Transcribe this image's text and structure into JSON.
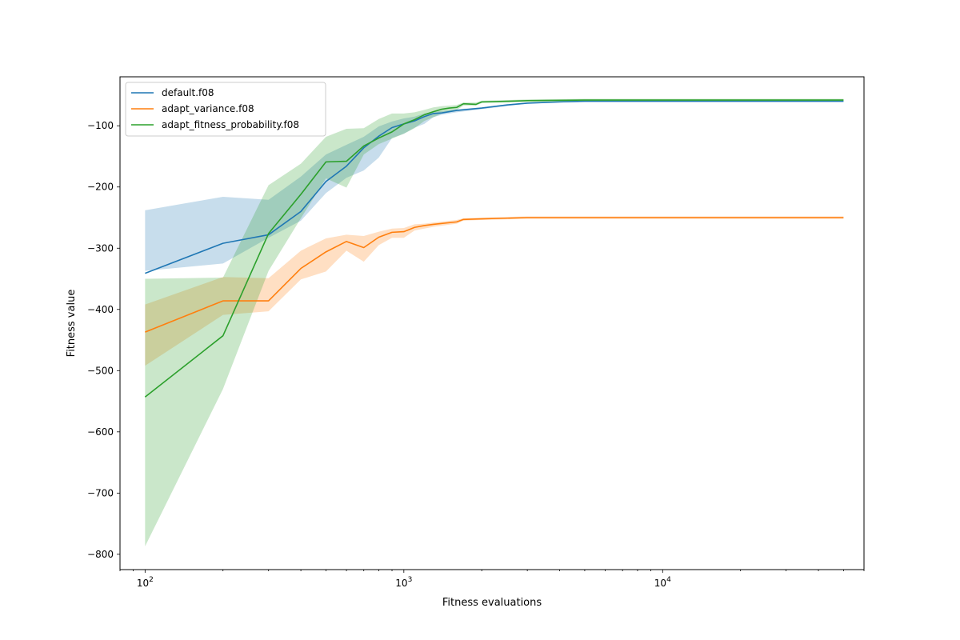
{
  "chart_data": {
    "type": "line",
    "title": "",
    "xlabel": "Fitness evaluations",
    "ylabel": "Fitness value",
    "xscale": "log",
    "xlim": [
      80,
      60000
    ],
    "ylim": [
      -825,
      -20
    ],
    "grid": false,
    "legend_position": "top-left",
    "x_ticks": [
      {
        "value": 100,
        "base": "10",
        "exp": "2"
      },
      {
        "value": 1000,
        "base": "10",
        "exp": "3"
      },
      {
        "value": 10000,
        "base": "10",
        "exp": "4"
      }
    ],
    "y_ticks": [
      {
        "value": -100,
        "label": "−100"
      },
      {
        "value": -200,
        "label": "−200"
      },
      {
        "value": -300,
        "label": "−300"
      },
      {
        "value": -400,
        "label": "−400"
      },
      {
        "value": -500,
        "label": "−500"
      },
      {
        "value": -600,
        "label": "−600"
      },
      {
        "value": -700,
        "label": "−700"
      },
      {
        "value": -800,
        "label": "−800"
      }
    ],
    "series": [
      {
        "name": "default.f08",
        "color": "#1f77b4",
        "x": [
          100,
          200,
          300,
          400,
          500,
          600,
          700,
          800,
          900,
          1000,
          1100,
          1200,
          1300,
          1400,
          1600,
          2000,
          2500,
          3000,
          4000,
          5000,
          10000,
          20000,
          50000
        ],
        "y": [
          -341,
          -292,
          -278,
          -240,
          -191,
          -166,
          -136,
          -117,
          -103,
          -97,
          -92,
          -85,
          -80,
          -79,
          -75,
          -71,
          -66,
          -63,
          -61,
          -60,
          -60,
          -60,
          -60
        ],
        "upper": [
          -238,
          -216,
          -221,
          -183,
          -147,
          -131,
          -118,
          -101,
          -93,
          -88,
          -85,
          -80,
          -77,
          -76,
          -73,
          -70,
          -65,
          -62,
          -60,
          -59,
          -59,
          -59,
          -59
        ],
        "lower": [
          -337,
          -325,
          -283,
          -255,
          -210,
          -185,
          -173,
          -152,
          -120,
          -113,
          -103,
          -97,
          -86,
          -82,
          -78,
          -73,
          -68,
          -64,
          -62,
          -61,
          -61,
          -61,
          -61
        ]
      },
      {
        "name": "adapt_variance.f08",
        "color": "#ff7f0e",
        "x": [
          100,
          200,
          300,
          400,
          500,
          600,
          700,
          800,
          900,
          1000,
          1100,
          1200,
          1300,
          1600,
          1700,
          2000,
          3000,
          5000,
          10000,
          20000,
          50000
        ],
        "y": [
          -437,
          -386,
          -386,
          -333,
          -306,
          -289,
          -299,
          -282,
          -274,
          -273,
          -266,
          -263,
          -261,
          -257,
          -253,
          -252,
          -250,
          -250,
          -250,
          -250,
          -250
        ],
        "upper": [
          -392,
          -347,
          -349,
          -304,
          -284,
          -278,
          -280,
          -273,
          -268,
          -267,
          -261,
          -260,
          -258,
          -254,
          -251,
          -250,
          -248,
          -248,
          -248,
          -248,
          -248
        ],
        "lower": [
          -492,
          -409,
          -403,
          -351,
          -338,
          -304,
          -322,
          -295,
          -283,
          -283,
          -271,
          -268,
          -265,
          -260,
          -255,
          -254,
          -252,
          -252,
          -252,
          -252,
          -252
        ]
      },
      {
        "name": "adapt_fitness_probability.f08",
        "color": "#2ca02c",
        "x": [
          100,
          200,
          300,
          400,
          500,
          600,
          700,
          800,
          900,
          1000,
          1100,
          1200,
          1300,
          1400,
          1500,
          1600,
          1700,
          1900,
          2000,
          2500,
          3000,
          5000,
          10000,
          20000,
          50000
        ],
        "y": [
          -543,
          -443,
          -276,
          -212,
          -159,
          -158,
          -133,
          -120,
          -110,
          -97,
          -90,
          -82,
          -77,
          -73,
          -71,
          -70,
          -64,
          -65,
          -61,
          -60,
          -59,
          -58,
          -58,
          -58,
          -58
        ],
        "upper": [
          -350,
          -348,
          -197,
          -162,
          -118,
          -105,
          -104,
          -89,
          -80,
          -80,
          -78,
          -74,
          -70,
          -68,
          -67,
          -66,
          -62,
          -62,
          -59,
          -58,
          -57,
          -56,
          -56,
          -56,
          -56
        ],
        "lower": [
          -787,
          -530,
          -337,
          -251,
          -186,
          -201,
          -147,
          -130,
          -121,
          -113,
          -104,
          -92,
          -86,
          -80,
          -76,
          -74,
          -67,
          -67,
          -63,
          -62,
          -61,
          -60,
          -60,
          -60,
          -60
        ]
      }
    ]
  }
}
